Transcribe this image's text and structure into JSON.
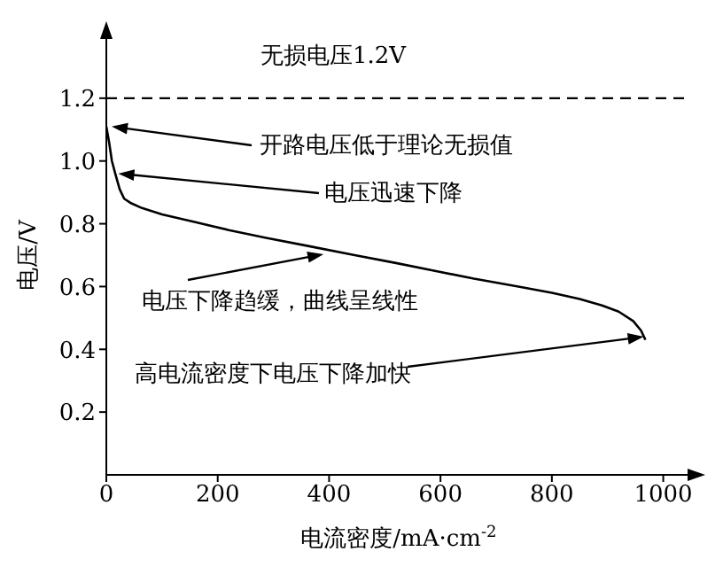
{
  "chart_data": {
    "type": "line",
    "xlabel": "电流密度/mA·cm$^{-2}$",
    "ylabel": "电压/V",
    "x": [
      0,
      5,
      10,
      16,
      24,
      32,
      45,
      64,
      100,
      160,
      220,
      287,
      360,
      446,
      520,
      590,
      660,
      740,
      800,
      850,
      890,
      920,
      946,
      960,
      968
    ],
    "values": [
      1.11,
      1.06,
      1.0,
      0.96,
      0.91,
      0.88,
      0.865,
      0.85,
      0.83,
      0.805,
      0.78,
      0.755,
      0.73,
      0.7,
      0.675,
      0.65,
      0.625,
      0.6,
      0.58,
      0.56,
      0.54,
      0.52,
      0.49,
      0.46,
      0.43
    ],
    "color": "#000000",
    "line_style": "solid",
    "marker": "none",
    "grid": false,
    "xlim": [
      0,
      1050
    ],
    "xticks": [
      0,
      200,
      400,
      600,
      800,
      1000
    ],
    "ylim": [
      0,
      1.4
    ],
    "yticks": [
      {
        "value": 0.2,
        "label": "0.2"
      },
      {
        "value": 0.4,
        "label": "0.4"
      },
      {
        "value": 0.6,
        "label": "0.6"
      },
      {
        "value": 0.8,
        "label": "0.8"
      },
      {
        "value": 1,
        "label": "1.0"
      },
      {
        "value": 1.2,
        "label": "1.2"
      }
    ],
    "ref_lines": [
      {
        "axis": "y",
        "value": 1.2,
        "label": "无损电压1.2V",
        "line_style": "dashed",
        "color": "#000000"
      }
    ],
    "annotations": [
      {
        "text": "开路电压低于理论无损值",
        "x": 0,
        "y": 1.11
      },
      {
        "text": "电压迅速下降",
        "x": 12,
        "y": 0.96
      },
      {
        "text": "电压下降趋缓，曲线呈线性",
        "x": 390,
        "y": 0.72
      },
      {
        "text": "高电流密度下电压下降加快",
        "x": 965,
        "y": 0.44
      }
    ]
  }
}
